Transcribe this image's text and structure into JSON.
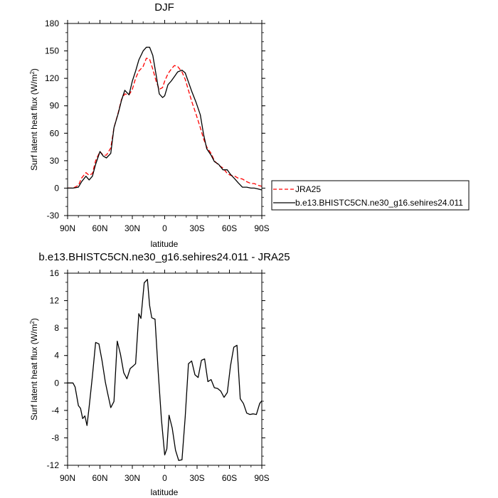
{
  "charts": [
    {
      "type": "line",
      "title": "DJF",
      "xlabel": "latitude",
      "ylabel": "Surf latent heat flux (W/m",
      "ylabel_sup": "2",
      "ylabel_close": ")",
      "xlim": [
        90,
        -90
      ],
      "ylim": [
        -30,
        180
      ],
      "yticks": [
        -30,
        0,
        30,
        60,
        90,
        120,
        150,
        180
      ],
      "ytick_labels": [
        "-30",
        "0",
        "30",
        "60",
        "90",
        "120",
        "150",
        "180"
      ],
      "xticks": [
        90,
        60,
        30,
        0,
        -30,
        -60,
        -90
      ],
      "xtick_labels": [
        "90N",
        "60N",
        "30N",
        "0",
        "30S",
        "60S",
        "90S"
      ],
      "legend": {
        "placement": "right",
        "entries": [
          "JRA25",
          "b.e13.BHISTC5CN.ne30_g16.sehires24.011"
        ]
      },
      "series": [
        {
          "name": "JRA25",
          "color": "#ff0000",
          "dash": true,
          "x": [
            90,
            85,
            80,
            77,
            73,
            70,
            67,
            64,
            60,
            57,
            54,
            50,
            47,
            43,
            40,
            37,
            33,
            30,
            27,
            24,
            20,
            17,
            14,
            11,
            8,
            5,
            2,
            0,
            -3,
            -6,
            -9,
            -12,
            -16,
            -19,
            -22,
            -25,
            -29,
            -33,
            -36,
            -39,
            -43,
            -46,
            -50,
            -54,
            -58,
            -61,
            -65,
            -68,
            -72,
            -76,
            -80,
            -83,
            -87,
            -90
          ],
          "y": [
            0,
            0,
            3,
            11,
            17,
            14,
            16,
            30,
            40,
            36,
            36,
            44,
            66,
            83,
            97,
            103,
            102,
            108,
            120,
            128,
            133,
            142,
            141,
            130,
            117,
            108,
            110,
            117,
            125,
            130,
            134,
            133,
            127,
            119,
            107,
            95,
            81,
            66,
            54,
            45,
            38,
            30,
            25,
            22,
            16,
            14,
            13,
            11,
            10,
            7,
            5,
            5,
            3,
            2
          ]
        },
        {
          "name": "b.e13.BHISTC5CN.ne30_g16.sehires24.011",
          "color": "#000000",
          "dash": false,
          "x": [
            90,
            85,
            80,
            77,
            73,
            70,
            67,
            64,
            60,
            57,
            54,
            50,
            47,
            43,
            40,
            37,
            33,
            30,
            27,
            24,
            20,
            17,
            14,
            11,
            8,
            5,
            2,
            0,
            -3,
            -6,
            -9,
            -12,
            -16,
            -19,
            -22,
            -25,
            -29,
            -33,
            -36,
            -39,
            -43,
            -46,
            -50,
            -54,
            -58,
            -61,
            -65,
            -68,
            -72,
            -76,
            -80,
            -83,
            -87,
            -90
          ],
          "y": [
            0,
            0,
            1,
            7,
            13,
            9,
            13,
            26,
            40,
            35,
            33,
            38,
            66,
            82,
            96,
            107,
            102,
            117,
            128,
            140,
            150,
            154,
            154,
            145,
            124,
            103,
            99,
            101,
            113,
            117,
            122,
            127,
            129,
            126,
            116,
            106,
            94,
            80,
            59,
            43,
            36,
            29,
            26,
            20,
            20,
            15,
            10,
            6,
            1,
            1,
            0,
            0,
            -1,
            -2
          ]
        }
      ]
    },
    {
      "type": "line",
      "title": "b.e13.BHISTC5CN.ne30_g16.sehires24.011 - JRA25",
      "xlabel": "latitude",
      "ylabel": "Surf latent heat flux (W/m",
      "ylabel_sup": "2",
      "ylabel_close": ")",
      "xlim": [
        90,
        -90
      ],
      "ylim": [
        -12,
        16
      ],
      "yticks": [
        -12,
        -8,
        -4,
        0,
        4,
        8,
        12,
        16
      ],
      "ytick_labels": [
        "-12",
        "-8",
        "-4",
        "0",
        "4",
        "8",
        "12",
        "16"
      ],
      "xticks": [
        90,
        60,
        30,
        0,
        -30,
        -60,
        -90
      ],
      "xtick_labels": [
        "90N",
        "60N",
        "30N",
        "0",
        "30S",
        "60S",
        "90S"
      ],
      "series": [
        {
          "name": "b.e13.BHISTC5CN.ne30_g16.sehires24.011 - JRA25",
          "color": "#000000",
          "dash": false,
          "x": [
            90,
            85,
            83,
            80,
            78,
            76,
            74,
            72,
            70,
            67,
            64,
            61,
            58,
            55,
            53,
            50,
            47,
            44,
            41,
            38,
            35,
            32,
            29,
            27,
            24,
            22,
            19,
            16,
            14,
            12,
            9,
            6,
            3,
            0,
            -2,
            -4,
            -7,
            -10,
            -13,
            -16,
            -19,
            -22,
            -25,
            -28,
            -31,
            -34,
            -37,
            -40,
            -43,
            -46,
            -49,
            -52,
            -55,
            -58,
            -61,
            -64,
            -67,
            -70,
            -73,
            -76,
            -79,
            -82,
            -85,
            -88,
            -90
          ],
          "y": [
            0,
            0,
            -0.6,
            -3.3,
            -3.7,
            -5.2,
            -4.8,
            -6.2,
            -3.5,
            1.0,
            5.9,
            5.7,
            3.2,
            0.1,
            -1.4,
            -3.6,
            -2.7,
            6.1,
            4.2,
            1.5,
            0.6,
            2.1,
            2.5,
            2.8,
            10.1,
            9.4,
            14.6,
            15.1,
            11.3,
            9.5,
            9.3,
            1.6,
            -5.3,
            -10.5,
            -9.6,
            -4.7,
            -6.6,
            -9.8,
            -11.3,
            -11.2,
            -5.0,
            2.8,
            3.2,
            1.2,
            0.8,
            3.3,
            3.5,
            0.2,
            0.5,
            -0.7,
            -0.8,
            -1.2,
            -2.1,
            -1.4,
            2.5,
            5.2,
            5.5,
            -2.3,
            -3.0,
            -4.4,
            -4.6,
            -4.5,
            -4.6,
            -3.0,
            -2.6
          ]
        }
      ]
    }
  ]
}
